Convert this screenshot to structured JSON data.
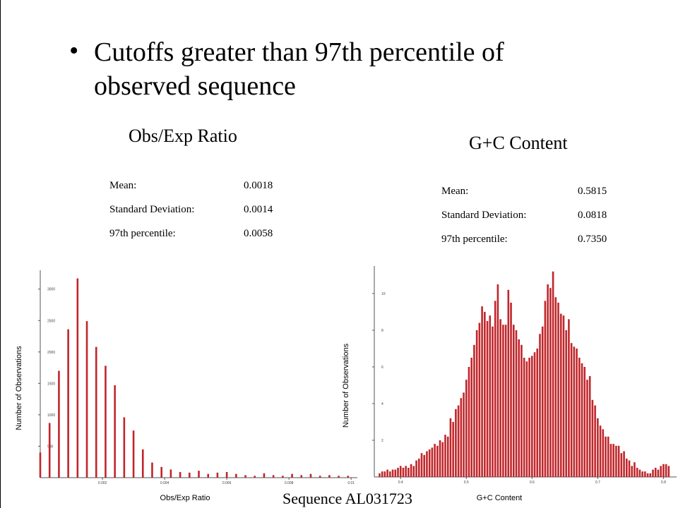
{
  "slide": {
    "bullet": "Cutoffs greater than 97th percentile of observed sequence",
    "footer": "Sequence AL031723"
  },
  "chart_data": [
    {
      "type": "bar",
      "title": "Obs/Exp Ratio",
      "x_label": "Obs/Exp Ratio",
      "y_label": "Number of Observations",
      "color": "#c0262b",
      "stats": [
        {
          "label": "Mean:",
          "value": "0.0018"
        },
        {
          "label": "Standard Deviation:",
          "value": "0.0014"
        },
        {
          "label": "97th percentile:",
          "value": "0.0058"
        }
      ],
      "x": [
        0,
        0.0003,
        0.0006,
        0.0009,
        0.0012,
        0.0015,
        0.0018,
        0.0021,
        0.0024,
        0.0027,
        0.003,
        0.0033,
        0.0036,
        0.0039,
        0.0042,
        0.0045,
        0.0048,
        0.0051,
        0.0054,
        0.0057,
        0.006,
        0.0063,
        0.0066,
        0.0069,
        0.0072,
        0.0075,
        0.0078,
        0.0081,
        0.0084,
        0.0087,
        0.009,
        0.0093,
        0.0096,
        0.0099
      ],
      "values": [
        400,
        870,
        1700,
        2360,
        3170,
        2490,
        2080,
        1780,
        1470,
        960,
        750,
        450,
        240,
        170,
        130,
        90,
        80,
        110,
        60,
        80,
        90,
        60,
        40,
        30,
        70,
        40,
        30,
        60,
        40,
        60,
        30,
        40,
        30,
        30
      ],
      "xlim": [
        0,
        0.0102
      ],
      "xticks": [
        0.002,
        0.004,
        0.006,
        0.008,
        0.01
      ],
      "ylim": [
        0,
        3300
      ],
      "yticks": [
        500,
        1000,
        1500,
        2000,
        2500,
        3000
      ]
    },
    {
      "type": "bar",
      "title": "G+C Content",
      "x_label": "G+C Content",
      "y_label": "Number of Observations",
      "color": "#c0262b",
      "stats": [
        {
          "label": "Mean:",
          "value": "0.5815"
        },
        {
          "label": "Standard Deviation:",
          "value": "0.0818"
        },
        {
          "label": "97th percentile:",
          "value": "0.7350"
        }
      ],
      "x": [
        0.368,
        0.372,
        0.376,
        0.38,
        0.384,
        0.388,
        0.392,
        0.396,
        0.4,
        0.404,
        0.408,
        0.412,
        0.416,
        0.42,
        0.424,
        0.428,
        0.432,
        0.436,
        0.44,
        0.444,
        0.448,
        0.452,
        0.456,
        0.46,
        0.464,
        0.468,
        0.472,
        0.476,
        0.48,
        0.484,
        0.488,
        0.492,
        0.496,
        0.5,
        0.504,
        0.508,
        0.512,
        0.516,
        0.52,
        0.524,
        0.528,
        0.532,
        0.536,
        0.54,
        0.544,
        0.548,
        0.552,
        0.556,
        0.56,
        0.564,
        0.568,
        0.572,
        0.576,
        0.58,
        0.584,
        0.588,
        0.592,
        0.596,
        0.6,
        0.604,
        0.608,
        0.612,
        0.616,
        0.62,
        0.624,
        0.628,
        0.632,
        0.636,
        0.64,
        0.644,
        0.648,
        0.652,
        0.656,
        0.66,
        0.664,
        0.668,
        0.672,
        0.676,
        0.68,
        0.684,
        0.688,
        0.692,
        0.696,
        0.7,
        0.704,
        0.708,
        0.712,
        0.716,
        0.72,
        0.724,
        0.728,
        0.732,
        0.736,
        0.74,
        0.744,
        0.748,
        0.752,
        0.756,
        0.76,
        0.764,
        0.768,
        0.772,
        0.776,
        0.78,
        0.784,
        0.788,
        0.792,
        0.796,
        0.8,
        0.804,
        0.808
      ],
      "values": [
        0.2,
        0.3,
        0.3,
        0.4,
        0.3,
        0.4,
        0.4,
        0.5,
        0.6,
        0.5,
        0.6,
        0.5,
        0.7,
        0.6,
        0.9,
        1.0,
        1.3,
        1.2,
        1.4,
        1.5,
        1.6,
        1.8,
        1.7,
        2.0,
        1.9,
        2.3,
        2.2,
        3.2,
        3.0,
        3.7,
        3.9,
        4.3,
        4.6,
        5.3,
        6.0,
        6.5,
        7.2,
        8.0,
        8.4,
        9.3,
        9.0,
        8.5,
        8.8,
        8.2,
        9.6,
        10.5,
        8.6,
        8.3,
        8.3,
        10.2,
        9.5,
        8.3,
        8.0,
        7.5,
        7.2,
        6.5,
        6.3,
        6.5,
        6.6,
        6.8,
        7.0,
        7.8,
        8.2,
        9.6,
        10.5,
        10.3,
        11.2,
        9.8,
        9.5,
        8.9,
        8.8,
        8.0,
        8.6,
        7.3,
        7.1,
        7.0,
        6.5,
        6.2,
        6.0,
        5.3,
        5.5,
        4.2,
        3.9,
        3.2,
        2.8,
        2.6,
        2.2,
        2.2,
        1.8,
        1.8,
        1.7,
        1.7,
        1.3,
        1.4,
        1.0,
        0.9,
        0.6,
        0.8,
        0.5,
        0.4,
        0.3,
        0.3,
        0.2,
        0.2,
        0.4,
        0.5,
        0.4,
        0.6,
        0.7,
        0.7,
        0.6
      ],
      "xlim": [
        0.36,
        0.82
      ],
      "xticks": [
        0.4,
        0.5,
        0.6,
        0.7,
        0.8
      ],
      "ylim": [
        0,
        11.5
      ],
      "yticks": [
        2,
        4,
        6,
        8,
        10
      ]
    }
  ]
}
